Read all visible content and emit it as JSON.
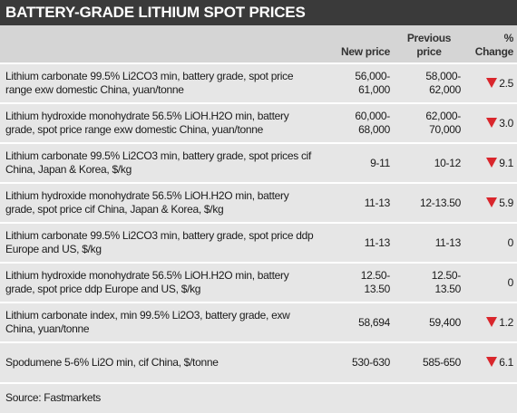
{
  "header": {
    "title": "BATTERY-GRADE LITHIUM SPOT PRICES"
  },
  "table": {
    "columns": [
      "New price",
      "Previous price",
      "% Change"
    ],
    "rows": [
      [
        "Lithium carbonate 99.5% Li2CO3 min, battery grade, spot price range exw domestic China, yuan/tonne",
        "56,000-61,000",
        "58,000-62,000",
        "2.5"
      ],
      [
        "Lithium hydroxide monohydrate 56.5% LiOH.H2O min, battery grade, spot price range exw domestic China, yuan/tonne",
        "60,000-68,000",
        "62,000-70,000",
        "3.0"
      ],
      [
        "Lithium carbonate 99.5% Li2CO3 min, battery grade, spot prices cif China, Japan & Korea, $/kg",
        "9-11",
        "10-12",
        "9.1"
      ],
      [
        "Lithium hydroxide monohydrate 56.5% LiOH.H2O min, battery grade, spot price cif China, Japan & Korea, $/kg",
        "11-13",
        "12-13.50",
        "5.9"
      ],
      [
        "Lithium carbonate 99.5% Li2CO3 min, battery grade, spot price ddp Europe and US, $/kg",
        "11-13",
        "11-13",
        "0"
      ],
      [
        "Lithium hydroxide monohydrate 56.5% LiOH.H2O min, battery grade, spot price ddp Europe and US, $/kg",
        "12.50-13.50",
        "12.50-13.50",
        "0"
      ],
      [
        "Lithium carbonate index, min 99.5% Li2O3, battery grade, exw China, yuan/tonne",
        "58,694",
        "59,400",
        "1.2"
      ],
      [
        "Spodumene 5-6% Li2O min, cif China, $/tonne",
        "530-630",
        "585-650",
        "6.1"
      ]
    ]
  },
  "footer": {
    "source": "Source: Fastmarkets"
  }
}
